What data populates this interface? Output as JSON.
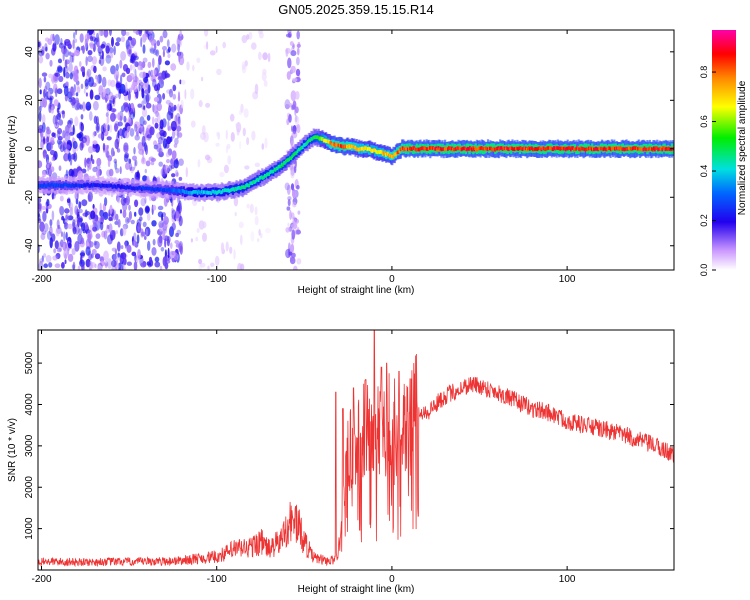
{
  "chart_data": [
    {
      "type": "heatmap",
      "title": "GN05.2025.359.15.15.R14",
      "xlabel": "Height of straight line (km)",
      "ylabel": "Frequency (Hz)",
      "xlim": [
        -202,
        161
      ],
      "ylim": [
        -50,
        49
      ],
      "xticks": [
        -200,
        -100,
        0,
        100
      ],
      "yticks": [
        -40,
        -20,
        0,
        20,
        40
      ],
      "colorbar": {
        "label": "Normalized spectral amplitude",
        "range": [
          0,
          0.97
        ],
        "ticks": [
          "0.0",
          "0.2",
          "0.4",
          "0.6",
          "0.8"
        ]
      },
      "ridge": {
        "x": [
          -202,
          -190,
          -170,
          -150,
          -130,
          -115,
          -100,
          -85,
          -70,
          -60,
          -50,
          -45,
          -40,
          -35,
          -30,
          -25,
          -20,
          -15,
          -10,
          -5,
          0,
          5,
          10,
          20,
          40,
          60,
          80,
          100,
          120,
          140,
          161
        ],
        "y": [
          -15,
          -15,
          -15,
          -16,
          -17,
          -18,
          -18,
          -16,
          -10,
          -5,
          2,
          5,
          4,
          2,
          1,
          1,
          0,
          0,
          -1,
          -2,
          -3,
          0,
          0,
          0,
          0,
          0,
          0,
          0,
          0,
          0,
          0
        ],
        "amplitude": [
          0.3,
          0.3,
          0.25,
          0.25,
          0.3,
          0.4,
          0.45,
          0.5,
          0.5,
          0.55,
          0.5,
          0.55,
          0.7,
          0.85,
          0.9,
          0.85,
          0.8,
          0.8,
          0.75,
          0.8,
          0.85,
          0.9,
          0.95,
          0.95,
          0.95,
          0.95,
          0.95,
          0.95,
          0.95,
          0.95,
          0.95
        ]
      },
      "noise_zones": [
        {
          "x_range": [
            -202,
            -120
          ],
          "y_range": [
            -50,
            49
          ],
          "density": "high",
          "amplitude": 0.15
        },
        {
          "x_range": [
            -120,
            -70
          ],
          "y_range": [
            -50,
            49
          ],
          "density": "sparse",
          "amplitude": 0.04
        },
        {
          "x_range": [
            -60,
            -53
          ],
          "y_range": [
            -50,
            49
          ],
          "density": "high",
          "amplitude": 0.1
        }
      ]
    },
    {
      "type": "line",
      "xlabel": "Height of straight line (km)",
      "ylabel": "SNR (10 * v/v)",
      "xlim": [
        -202,
        161
      ],
      "ylim": [
        0,
        5800
      ],
      "xticks": [
        -200,
        -100,
        0,
        100
      ],
      "yticks": [
        1000,
        2000,
        3000,
        4000,
        5000
      ],
      "color": "#ee3333",
      "series": [
        {
          "name": "SNR",
          "x": [
            -202,
            -190,
            -175,
            -160,
            -145,
            -130,
            -120,
            -110,
            -100,
            -95,
            -90,
            -80,
            -75,
            -70,
            -65,
            -62,
            -60,
            -55,
            -50,
            -45,
            -40,
            -35,
            -32,
            -30,
            -28,
            -26,
            -25,
            -22,
            -20,
            -18,
            -15,
            -12,
            -10,
            -8,
            -5,
            -3,
            0,
            3,
            5,
            8,
            10,
            15,
            20,
            25,
            30,
            40,
            45,
            50,
            60,
            70,
            80,
            90,
            100,
            110,
            120,
            130,
            140,
            150,
            161
          ],
          "y": [
            200,
            200,
            190,
            200,
            200,
            210,
            230,
            280,
            320,
            400,
            500,
            550,
            700,
            500,
            650,
            800,
            1100,
            1200,
            700,
            300,
            250,
            220,
            280,
            600,
            1400,
            2400,
            2800,
            3000,
            2900,
            3200,
            3500,
            3000,
            3400,
            3500,
            3300,
            3500,
            3600,
            3400,
            3700,
            3600,
            3800,
            3900,
            3800,
            4000,
            4200,
            4400,
            4500,
            4450,
            4300,
            4100,
            3900,
            3800,
            3600,
            3500,
            3400,
            3300,
            3150,
            3000,
            2800
          ]
        }
      ],
      "spikes": [
        {
          "x": -32,
          "y": 4300
        },
        {
          "x": -28,
          "y": 3900
        },
        {
          "x": -22,
          "y": 4400
        },
        {
          "x": -15,
          "y": 4600
        },
        {
          "x": -10,
          "y": 5800
        },
        {
          "x": -6,
          "y": 4900
        },
        {
          "x": -3,
          "y": 5000
        },
        {
          "x": 4,
          "y": 4800
        },
        {
          "x": 10,
          "y": 3800
        },
        {
          "x": 15,
          "y": 1300
        }
      ]
    }
  ]
}
